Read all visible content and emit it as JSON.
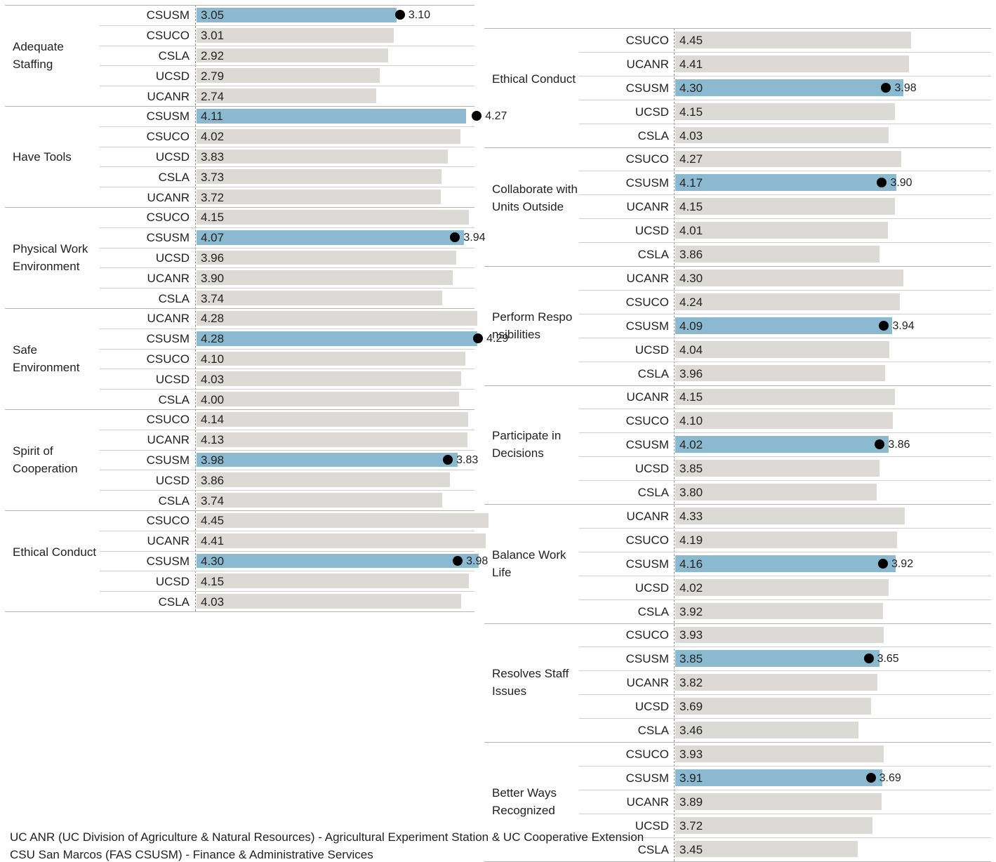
{
  "chart_data": [
    {
      "type": "bar",
      "orientation": "horizontal",
      "highlight_color": "#8bbad0",
      "default_color": "#dcdad6",
      "groups": [
        {
          "category": "Adequate Staffing",
          "reference_value": 3.1,
          "rows": [
            {
              "label": "CSUSM",
              "value": 3.05,
              "value_label": "3.05",
              "highlight": true,
              "reference_label": "3.10"
            },
            {
              "label": "CSUCO",
              "value": 3.01,
              "value_label": "3.01"
            },
            {
              "label": "CSLA",
              "value": 2.92,
              "value_label": "2.92"
            },
            {
              "label": "UCSD",
              "value": 2.79,
              "value_label": "2.79"
            },
            {
              "label": "UCANR",
              "value": 2.74,
              "value_label": "2.74"
            }
          ]
        },
        {
          "category": "Have Tools",
          "reference_value": 4.27,
          "rows": [
            {
              "label": "CSUSM",
              "value": 4.11,
              "value_label": "4.11",
              "highlight": true,
              "reference_label": "4.27"
            },
            {
              "label": "CSUCO",
              "value": 4.02,
              "value_label": "4.02"
            },
            {
              "label": "UCSD",
              "value": 3.83,
              "value_label": "3.83"
            },
            {
              "label": "CSLA",
              "value": 3.73,
              "value_label": "3.73"
            },
            {
              "label": "UCANR",
              "value": 3.72,
              "value_label": "3.72"
            }
          ]
        },
        {
          "category": "Physical Work Environment",
          "reference_value": 3.94,
          "rows": [
            {
              "label": "CSUCO",
              "value": 4.15,
              "value_label": "4.15"
            },
            {
              "label": "CSUSM",
              "value": 4.07,
              "value_label": "4.07",
              "highlight": true,
              "reference_label": "3.94"
            },
            {
              "label": "UCSD",
              "value": 3.96,
              "value_label": "3.96"
            },
            {
              "label": "UCANR",
              "value": 3.9,
              "value_label": "3.90"
            },
            {
              "label": "CSLA",
              "value": 3.74,
              "value_label": "3.74"
            }
          ]
        },
        {
          "category": "Safe Environment",
          "reference_value": 4.29,
          "rows": [
            {
              "label": "UCANR",
              "value": 4.28,
              "value_label": "4.28"
            },
            {
              "label": "CSUSM",
              "value": 4.28,
              "value_label": "4.28",
              "highlight": true,
              "reference_label": "4.29"
            },
            {
              "label": "CSUCO",
              "value": 4.1,
              "value_label": "4.10"
            },
            {
              "label": "UCSD",
              "value": 4.03,
              "value_label": "4.03"
            },
            {
              "label": "CSLA",
              "value": 4.0,
              "value_label": "4.00"
            }
          ]
        },
        {
          "category": "Spirit of Cooperation",
          "reference_value": 3.83,
          "rows": [
            {
              "label": "CSUCO",
              "value": 4.14,
              "value_label": "4.14"
            },
            {
              "label": "UCANR",
              "value": 4.13,
              "value_label": "4.13"
            },
            {
              "label": "CSUSM",
              "value": 3.98,
              "value_label": "3.98",
              "highlight": true,
              "reference_label": "3.83"
            },
            {
              "label": "UCSD",
              "value": 3.86,
              "value_label": "3.86"
            },
            {
              "label": "CSLA",
              "value": 3.74,
              "value_label": "3.74"
            }
          ]
        },
        {
          "category": "Ethical Conduct",
          "reference_value": 3.98,
          "rows": [
            {
              "label": "CSUCO",
              "value": 4.45,
              "value_label": "4.45"
            },
            {
              "label": "UCANR",
              "value": 4.41,
              "value_label": "4.41"
            },
            {
              "label": "CSUSM",
              "value": 4.3,
              "value_label": "4.30",
              "highlight": true,
              "reference_label": "3.98"
            },
            {
              "label": "UCSD",
              "value": 4.15,
              "value_label": "4.15"
            },
            {
              "label": "CSLA",
              "value": 4.03,
              "value_label": "4.03"
            }
          ]
        }
      ]
    },
    {
      "type": "bar",
      "orientation": "horizontal",
      "highlight_color": "#8bbad0",
      "default_color": "#dcdad6",
      "groups": [
        {
          "category": "Ethical Conduct",
          "reference_value": 3.98,
          "rows": [
            {
              "label": "CSUCO",
              "value": 4.45,
              "value_label": "4.45"
            },
            {
              "label": "UCANR",
              "value": 4.41,
              "value_label": "4.41"
            },
            {
              "label": "CSUSM",
              "value": 4.3,
              "value_label": "4.30",
              "highlight": true,
              "reference_label": "3.98"
            },
            {
              "label": "UCSD",
              "value": 4.15,
              "value_label": "4.15"
            },
            {
              "label": "CSLA",
              "value": 4.03,
              "value_label": "4.03"
            }
          ]
        },
        {
          "category": "Collaborate with Units Outside",
          "reference_value": 3.9,
          "rows": [
            {
              "label": "CSUCO",
              "value": 4.27,
              "value_label": "4.27"
            },
            {
              "label": "CSUSM",
              "value": 4.17,
              "value_label": "4.17",
              "highlight": true,
              "reference_label": "3.90"
            },
            {
              "label": "UCANR",
              "value": 4.15,
              "value_label": "4.15"
            },
            {
              "label": "UCSD",
              "value": 4.01,
              "value_label": "4.01"
            },
            {
              "label": "CSLA",
              "value": 3.86,
              "value_label": "3.86"
            }
          ]
        },
        {
          "category": "Perform Respo nsibilities",
          "reference_value": 3.94,
          "rows": [
            {
              "label": "UCANR",
              "value": 4.3,
              "value_label": "4.30"
            },
            {
              "label": "CSUCO",
              "value": 4.24,
              "value_label": "4.24"
            },
            {
              "label": "CSUSM",
              "value": 4.09,
              "value_label": "4.09",
              "highlight": true,
              "reference_label": "3.94"
            },
            {
              "label": "UCSD",
              "value": 4.04,
              "value_label": "4.04"
            },
            {
              "label": "CSLA",
              "value": 3.96,
              "value_label": "3.96"
            }
          ]
        },
        {
          "category": "Participate in Decisions",
          "reference_value": 3.86,
          "rows": [
            {
              "label": "UCANR",
              "value": 4.15,
              "value_label": "4.15"
            },
            {
              "label": "CSUCO",
              "value": 4.1,
              "value_label": "4.10"
            },
            {
              "label": "CSUSM",
              "value": 4.02,
              "value_label": "4.02",
              "highlight": true,
              "reference_label": "3.86"
            },
            {
              "label": "UCSD",
              "value": 3.85,
              "value_label": "3.85"
            },
            {
              "label": "CSLA",
              "value": 3.8,
              "value_label": "3.80"
            }
          ]
        },
        {
          "category": "Balance Work Life",
          "reference_value": 3.92,
          "rows": [
            {
              "label": "UCANR",
              "value": 4.33,
              "value_label": "4.33"
            },
            {
              "label": "CSUCO",
              "value": 4.19,
              "value_label": "4.19"
            },
            {
              "label": "CSUSM",
              "value": 4.16,
              "value_label": "4.16",
              "highlight": true,
              "reference_label": "3.92"
            },
            {
              "label": "UCSD",
              "value": 4.02,
              "value_label": "4.02"
            },
            {
              "label": "CSLA",
              "value": 3.92,
              "value_label": "3.92"
            }
          ]
        },
        {
          "category": "Resolves Staff Issues",
          "reference_value": 3.65,
          "rows": [
            {
              "label": "CSUCO",
              "value": 3.93,
              "value_label": "3.93"
            },
            {
              "label": "CSUSM",
              "value": 3.85,
              "value_label": "3.85",
              "highlight": true,
              "reference_label": "3.65"
            },
            {
              "label": "UCANR",
              "value": 3.82,
              "value_label": "3.82"
            },
            {
              "label": "UCSD",
              "value": 3.69,
              "value_label": "3.69"
            },
            {
              "label": "CSLA",
              "value": 3.46,
              "value_label": "3.46"
            }
          ]
        },
        {
          "category": "Better Ways Recognized",
          "reference_value": 3.69,
          "rows": [
            {
              "label": "CSUCO",
              "value": 3.93,
              "value_label": "3.93"
            },
            {
              "label": "CSUSM",
              "value": 3.91,
              "value_label": "3.91",
              "highlight": true,
              "reference_label": "3.69"
            },
            {
              "label": "UCANR",
              "value": 3.89,
              "value_label": "3.89"
            },
            {
              "label": "UCSD",
              "value": 3.72,
              "value_label": "3.72"
            },
            {
              "label": "CSLA",
              "value": 3.45,
              "value_label": "3.45"
            }
          ]
        }
      ]
    }
  ],
  "footnotes": [
    "UC ANR (UC Division of Agriculture & Natural Resources) - Agricultural Experiment Station & UC Cooperative Extension",
    "CSU San Marcos (FAS CSUSM) - Finance & Administrative Services"
  ]
}
